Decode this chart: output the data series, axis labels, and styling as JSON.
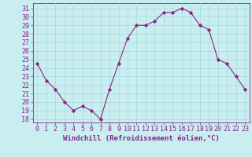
{
  "x": [
    0,
    1,
    2,
    3,
    4,
    5,
    6,
    7,
    8,
    9,
    10,
    11,
    12,
    13,
    14,
    15,
    16,
    17,
    18,
    19,
    20,
    21,
    22,
    23
  ],
  "y": [
    24.5,
    22.5,
    21.5,
    20.0,
    19.0,
    19.5,
    19.0,
    18.0,
    21.5,
    24.5,
    27.5,
    29.0,
    29.0,
    29.5,
    30.5,
    30.5,
    31.0,
    30.5,
    29.0,
    28.5,
    25.0,
    24.5,
    23.0,
    21.5
  ],
  "line_color": "#882288",
  "marker": "D",
  "marker_size": 2.2,
  "bg_color": "#c8eef0",
  "grid_color": "#a8d8da",
  "xlabel": "Windchill (Refroidissement éolien,°C)",
  "ylabel_ticks": [
    18,
    19,
    20,
    21,
    22,
    23,
    24,
    25,
    26,
    27,
    28,
    29,
    30,
    31
  ],
  "xlim": [
    -0.5,
    23.5
  ],
  "ylim": [
    17.6,
    31.6
  ],
  "xlabel_fontsize": 6.5,
  "tick_fontsize": 6.0
}
